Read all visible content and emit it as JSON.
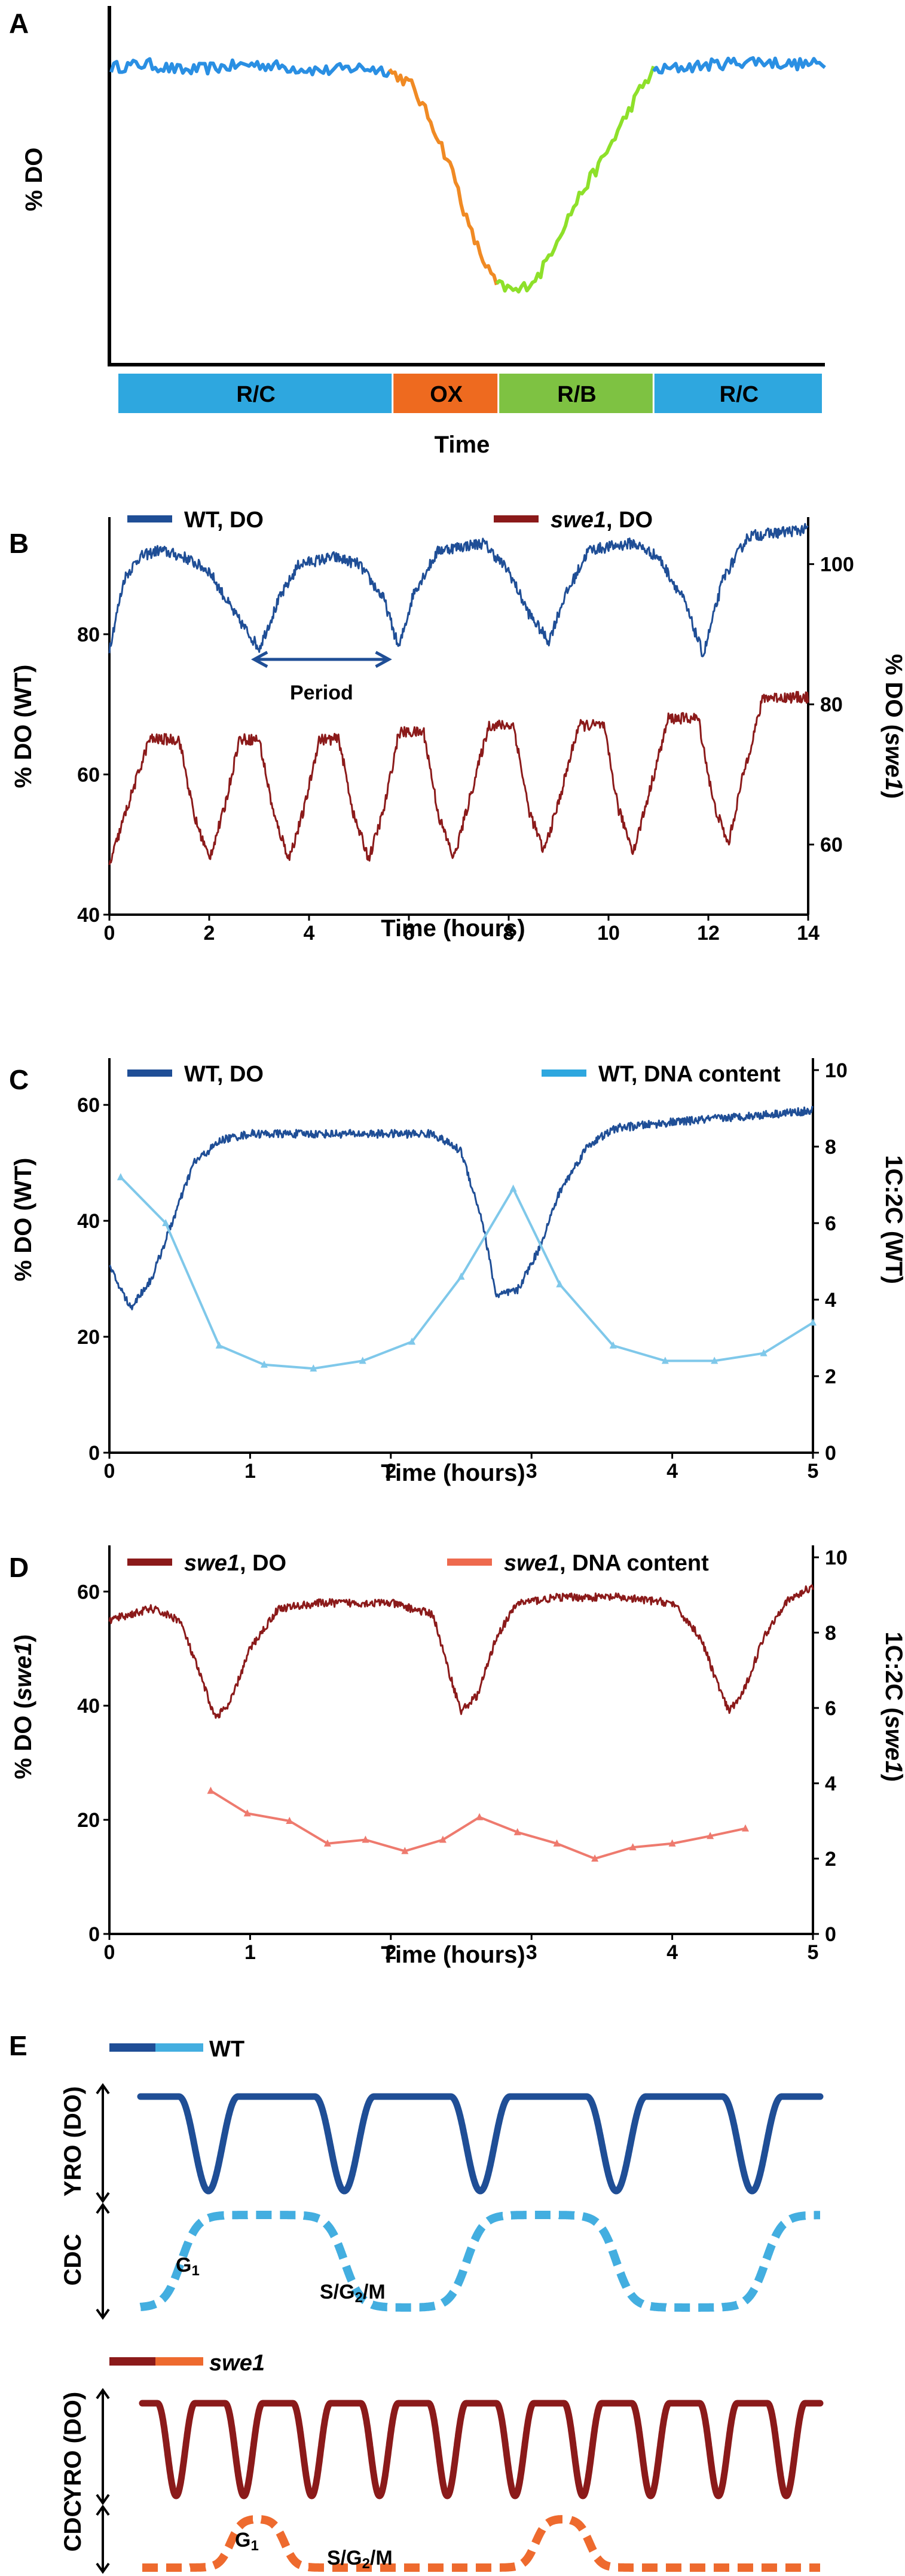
{
  "colors": {
    "wt_do": "#1f4e96",
    "swe1_do": "#8b1a1a",
    "wt_dna": "#7fc8ea",
    "swe1_dna": "#ee7a6e",
    "rc": "#2ea7df",
    "ox": "#ee6a1f",
    "rb": "#7ec242",
    "panelA_rc_line": "#2a8fe3",
    "panelA_ox_line": "#f08a24",
    "panelA_rb_line": "#8ee02a",
    "cartoon_wt_cdc": "#43aee0",
    "cartoon_swe1_cdc": "#ee6a2e"
  },
  "chart_data": [
    {
      "id": "A",
      "panel_label": "A",
      "type": "line",
      "ylabel": "% DO",
      "xlabel": "Time",
      "segments": [
        {
          "label": "R/C",
          "start": 0,
          "end": 0.39
        },
        {
          "label": "OX",
          "start": 0.39,
          "end": 0.54
        },
        {
          "label": "R/B",
          "start": 0.54,
          "end": 0.76
        },
        {
          "label": "R/C",
          "start": 0.76,
          "end": 1.0
        }
      ],
      "series": [
        {
          "phase": "R/C",
          "points": [
            [
              0,
              0.87
            ],
            [
              0.05,
              0.88
            ],
            [
              0.1,
              0.86
            ],
            [
              0.15,
              0.87
            ],
            [
              0.2,
              0.88
            ],
            [
              0.25,
              0.87
            ],
            [
              0.3,
              0.86
            ],
            [
              0.35,
              0.87
            ],
            [
              0.39,
              0.86
            ]
          ]
        },
        {
          "phase": "OX",
          "points": [
            [
              0.39,
              0.86
            ],
            [
              0.42,
              0.82
            ],
            [
              0.45,
              0.7
            ],
            [
              0.48,
              0.55
            ],
            [
              0.5,
              0.4
            ],
            [
              0.52,
              0.3
            ],
            [
              0.54,
              0.22
            ]
          ]
        },
        {
          "phase": "R/B",
          "points": [
            [
              0.54,
              0.22
            ],
            [
              0.57,
              0.2
            ],
            [
              0.6,
              0.25
            ],
            [
              0.63,
              0.38
            ],
            [
              0.66,
              0.5
            ],
            [
              0.69,
              0.6
            ],
            [
              0.72,
              0.72
            ],
            [
              0.74,
              0.8
            ],
            [
              0.76,
              0.86
            ]
          ]
        },
        {
          "phase": "R/C",
          "points": [
            [
              0.76,
              0.86
            ],
            [
              0.8,
              0.87
            ],
            [
              0.85,
              0.88
            ],
            [
              0.9,
              0.89
            ],
            [
              0.95,
              0.88
            ],
            [
              1.0,
              0.88
            ]
          ]
        }
      ]
    },
    {
      "id": "B",
      "panel_label": "B",
      "type": "line",
      "xlabel": "Time (hours)",
      "ylabel_left": "% DO (WT)",
      "ylabel_right_prefix": "% DO (",
      "ylabel_right_italic": "swe1",
      "ylabel_right_suffix": ")",
      "xlim": [
        0,
        14
      ],
      "ylim_left": [
        40,
        95
      ],
      "ylim_right": [
        50,
        105
      ],
      "xticks": [
        "0",
        "2",
        "4",
        "6",
        "8",
        "10",
        "12",
        "14"
      ],
      "yticks_left": [
        "40",
        "60",
        "80"
      ],
      "yticks_right": [
        "60",
        "80",
        "100"
      ],
      "annotation": "Period",
      "period_arrow": [
        2.9,
        5.6
      ],
      "legend": [
        {
          "prefix": "",
          "italic": "",
          "suffix": "WT, DO"
        },
        {
          "prefix": "",
          "italic": "swe1",
          "suffix": ", DO"
        }
      ],
      "series": [
        {
          "name": "WT, DO",
          "axis": "left",
          "points": [
            [
              0,
              78
            ],
            [
              0.3,
              88
            ],
            [
              0.6,
              91
            ],
            [
              1,
              92
            ],
            [
              1.5,
              91
            ],
            [
              2,
              89
            ],
            [
              2.5,
              83
            ],
            [
              3,
              78
            ],
            [
              3.4,
              85
            ],
            [
              3.8,
              90
            ],
            [
              4.5,
              91
            ],
            [
              5,
              90
            ],
            [
              5.5,
              85
            ],
            [
              5.8,
              78
            ],
            [
              6.1,
              86
            ],
            [
              6.6,
              92
            ],
            [
              7.5,
              93
            ],
            [
              8,
              89
            ],
            [
              8.4,
              83
            ],
            [
              8.8,
              79
            ],
            [
              9.1,
              85
            ],
            [
              9.6,
              92
            ],
            [
              10.5,
              93
            ],
            [
              11,
              91
            ],
            [
              11.5,
              85
            ],
            [
              11.9,
              77
            ],
            [
              12.3,
              88
            ],
            [
              12.8,
              94
            ],
            [
              14,
              95
            ]
          ]
        },
        {
          "name": "swe1, DO",
          "axis": "right",
          "points": [
            [
              0,
              57
            ],
            [
              0.3,
              64
            ],
            [
              0.8,
              75
            ],
            [
              1.4,
              75
            ],
            [
              1.7,
              64
            ],
            [
              2,
              58
            ],
            [
              2.3,
              65
            ],
            [
              2.6,
              75
            ],
            [
              3,
              75
            ],
            [
              3.3,
              64
            ],
            [
              3.6,
              58
            ],
            [
              3.9,
              65
            ],
            [
              4.2,
              75
            ],
            [
              4.6,
              75
            ],
            [
              4.9,
              64
            ],
            [
              5.2,
              58
            ],
            [
              5.5,
              65
            ],
            [
              5.8,
              76
            ],
            [
              6.3,
              76
            ],
            [
              6.6,
              64
            ],
            [
              6.9,
              58
            ],
            [
              7.2,
              66
            ],
            [
              7.6,
              77
            ],
            [
              8.1,
              77
            ],
            [
              8.4,
              65
            ],
            [
              8.7,
              59
            ],
            [
              9,
              66
            ],
            [
              9.4,
              77
            ],
            [
              9.9,
              77
            ],
            [
              10.2,
              65
            ],
            [
              10.5,
              59
            ],
            [
              10.8,
              67
            ],
            [
              11.2,
              78
            ],
            [
              11.8,
              78
            ],
            [
              12.1,
              66
            ],
            [
              12.4,
              60
            ],
            [
              12.7,
              70
            ],
            [
              13.1,
              81
            ],
            [
              14,
              81
            ]
          ]
        }
      ]
    },
    {
      "id": "C",
      "panel_label": "C",
      "type": "line",
      "xlabel": "Time (hours)",
      "ylabel_left": "% DO (WT)",
      "ylabel_right": "1C:2C (WT)",
      "xlim": [
        0,
        5
      ],
      "ylim_left": [
        0,
        66
      ],
      "ylim_right": [
        0,
        10
      ],
      "xticks": [
        "0",
        "1",
        "2",
        "3",
        "4",
        "5"
      ],
      "yticks_left": [
        "0",
        "20",
        "40",
        "60"
      ],
      "yticks_right": [
        "0",
        "2",
        "4",
        "6",
        "8",
        "10"
      ],
      "legend": [
        {
          "prefix": "",
          "italic": "",
          "suffix": "WT, DO"
        },
        {
          "prefix": "",
          "italic": "",
          "suffix": "WT, DNA content"
        }
      ],
      "series": [
        {
          "name": "WT, DO",
          "axis": "left",
          "points": [
            [
              0,
              32
            ],
            [
              0.15,
              25
            ],
            [
              0.3,
              30
            ],
            [
              0.45,
              40
            ],
            [
              0.6,
              50
            ],
            [
              0.8,
              54
            ],
            [
              1,
              55
            ],
            [
              1.5,
              55
            ],
            [
              2,
              55
            ],
            [
              2.3,
              55
            ],
            [
              2.5,
              52
            ],
            [
              2.65,
              40
            ],
            [
              2.75,
              27
            ],
            [
              2.9,
              28
            ],
            [
              3.05,
              35
            ],
            [
              3.2,
              45
            ],
            [
              3.4,
              53
            ],
            [
              3.6,
              56
            ],
            [
              4,
              57
            ],
            [
              4.5,
              58
            ],
            [
              5,
              59
            ]
          ]
        },
        {
          "name": "WT, DNA content",
          "axis": "right",
          "markers": true,
          "points": [
            [
              0.08,
              7.2
            ],
            [
              0.4,
              6.0
            ],
            [
              0.78,
              2.8
            ],
            [
              1.1,
              2.3
            ],
            [
              1.45,
              2.2
            ],
            [
              1.8,
              2.4
            ],
            [
              2.15,
              2.9
            ],
            [
              2.5,
              4.6
            ],
            [
              2.87,
              6.9
            ],
            [
              3.2,
              4.4
            ],
            [
              3.58,
              2.8
            ],
            [
              3.95,
              2.4
            ],
            [
              4.3,
              2.4
            ],
            [
              4.65,
              2.6
            ],
            [
              5.0,
              3.4
            ]
          ]
        }
      ]
    },
    {
      "id": "D",
      "panel_label": "D",
      "type": "line",
      "xlabel": "Time (hours)",
      "ylabel_left_prefix": "% DO (",
      "ylabel_left_italic": "swe1",
      "ylabel_left_suffix": ")",
      "ylabel_right_prefix": "1C:2C (",
      "ylabel_right_italic": "swe1",
      "ylabel_right_suffix": ")",
      "xlim": [
        0,
        5
      ],
      "ylim_left": [
        0,
        66
      ],
      "ylim_right": [
        0,
        10
      ],
      "xticks": [
        "0",
        "1",
        "2",
        "3",
        "4",
        "5"
      ],
      "yticks_left": [
        "0",
        "20",
        "40",
        "60"
      ],
      "yticks_right": [
        "0",
        "2",
        "4",
        "6",
        "8",
        "10"
      ],
      "legend": [
        {
          "prefix": "",
          "italic": "swe1",
          "suffix": ", DO"
        },
        {
          "prefix": "",
          "italic": "swe1",
          "suffix": ", DNA content"
        }
      ],
      "series": [
        {
          "name": "swe1, DO",
          "axis": "left",
          "points": [
            [
              0,
              55
            ],
            [
              0.3,
              57
            ],
            [
              0.5,
              55
            ],
            [
              0.65,
              45
            ],
            [
              0.75,
              38
            ],
            [
              0.85,
              40
            ],
            [
              1,
              50
            ],
            [
              1.2,
              57
            ],
            [
              1.5,
              58
            ],
            [
              2,
              58
            ],
            [
              2.3,
              56
            ],
            [
              2.4,
              47
            ],
            [
              2.5,
              39
            ],
            [
              2.62,
              42
            ],
            [
              2.75,
              52
            ],
            [
              2.9,
              58
            ],
            [
              3.2,
              59
            ],
            [
              3.6,
              59
            ],
            [
              4,
              58
            ],
            [
              4.2,
              52
            ],
            [
              4.32,
              44
            ],
            [
              4.4,
              39
            ],
            [
              4.5,
              42
            ],
            [
              4.65,
              52
            ],
            [
              4.8,
              58
            ],
            [
              5,
              61
            ]
          ]
        },
        {
          "name": "swe1, DNA content",
          "axis": "right",
          "markers": true,
          "points": [
            [
              0.72,
              3.8
            ],
            [
              0.98,
              3.2
            ],
            [
              1.28,
              3.0
            ],
            [
              1.55,
              2.4
            ],
            [
              1.82,
              2.5
            ],
            [
              2.1,
              2.2
            ],
            [
              2.37,
              2.5
            ],
            [
              2.63,
              3.1
            ],
            [
              2.9,
              2.7
            ],
            [
              3.18,
              2.4
            ],
            [
              3.45,
              2.0
            ],
            [
              3.72,
              2.3
            ],
            [
              4.0,
              2.4
            ],
            [
              4.27,
              2.6
            ],
            [
              4.52,
              2.8
            ]
          ]
        }
      ]
    }
  ],
  "panelE": {
    "label": "E",
    "wt": {
      "legend": "WT",
      "yro_label": "YRO (DO)",
      "cdc_label": "CDC",
      "g1_main": "G",
      "g1_sub": "1",
      "sg_pre": "S/G",
      "sg_sub": "2",
      "sg_post": "/M",
      "yro_cycles": 5,
      "cdc_cycles": 2.5
    },
    "swe1": {
      "legend": "swe1",
      "yro_label": "YRO (DO)",
      "cdc_label": "CDC",
      "g1_main": "G",
      "g1_sub": "1",
      "sg_pre": "S/G",
      "sg_sub": "2",
      "sg_post": "/M",
      "yro_cycles": 10,
      "cdc_cycles": 2
    }
  }
}
